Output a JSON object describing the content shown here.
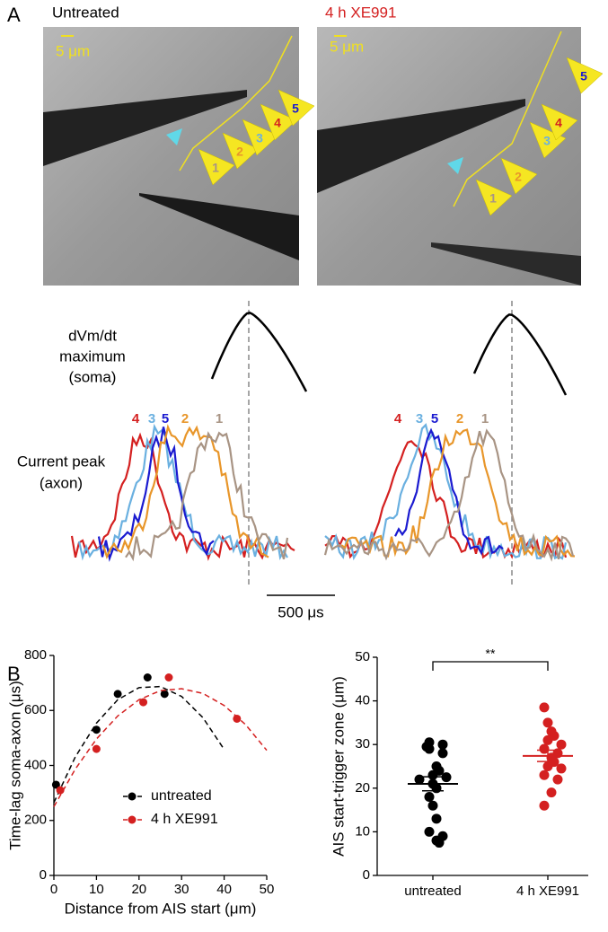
{
  "panel_labels": [
    "A",
    "B"
  ],
  "images": [
    {
      "label": "Untreated",
      "scale": "5 μm",
      "arrows": [
        "1",
        "2",
        "3",
        "4",
        "5"
      ]
    },
    {
      "label": "4 h XE991",
      "scale": "5 μm",
      "arrows": [
        "1",
        "2",
        "3",
        "4",
        "5"
      ]
    }
  ],
  "traces": {
    "soma_label": [
      "dVm/dt",
      "maximum",
      "(soma)"
    ],
    "axon_label": [
      "Current peak",
      "(axon)"
    ],
    "left_numbers": [
      "4",
      "3",
      "5",
      "2",
      "1"
    ],
    "right_numbers": [
      "4",
      "3",
      "5",
      "2",
      "1"
    ],
    "scale": "500 μs"
  },
  "chart_data": [
    {
      "type": "scatter",
      "xlabel": "Distance from AIS start (μm)",
      "ylabel": "Time-lag soma-axon (μs)",
      "xlim": [
        0,
        50
      ],
      "xticks": [
        0,
        10,
        20,
        30,
        40,
        50
      ],
      "ylim": [
        0,
        800
      ],
      "yticks": [
        0,
        200,
        400,
        600,
        800
      ],
      "legend": "center",
      "series": [
        {
          "name": "untreated",
          "color": "#000000",
          "x": [
            0.5,
            10,
            15,
            22,
            26
          ],
          "values": [
            330,
            530,
            660,
            720,
            660
          ],
          "fit_x": [
            0,
            5,
            10,
            15,
            20,
            25,
            30,
            35,
            40
          ],
          "fit_values": [
            265,
            430,
            554,
            639,
            683,
            687,
            651,
            574,
            458
          ]
        },
        {
          "name": "4 h XE991",
          "color": "#d42020",
          "x": [
            1.5,
            10,
            21,
            27,
            43
          ],
          "values": [
            310,
            460,
            630,
            720,
            570
          ],
          "fit_x": [
            0,
            5,
            10,
            15,
            20,
            25,
            30,
            35,
            40,
            45,
            50
          ],
          "fit_values": [
            250,
            386,
            496,
            580,
            639,
            672,
            679,
            662,
            618,
            549,
            455
          ]
        }
      ]
    },
    {
      "type": "strip",
      "ylabel": "AIS start-trigger zone (μm)",
      "ylim": [
        0,
        50
      ],
      "yticks": [
        0,
        10,
        20,
        30,
        40,
        50
      ],
      "categories": [
        "untreated",
        "4 h XE991"
      ],
      "significance": "**",
      "series": [
        {
          "color": "#000000",
          "values": [
            30.5,
            30,
            29.5,
            29,
            28,
            25,
            24,
            23,
            22.5,
            22,
            21,
            20,
            18,
            16,
            13,
            10,
            9,
            8,
            7.5
          ],
          "mean": 21,
          "sem": 1.6
        },
        {
          "color": "#d42020",
          "values": [
            38.5,
            35,
            33,
            32,
            31,
            30,
            29,
            28,
            27,
            26,
            25,
            24.5,
            23,
            22,
            19,
            16
          ],
          "mean": 27.4,
          "sem": 1.3
        }
      ]
    }
  ]
}
